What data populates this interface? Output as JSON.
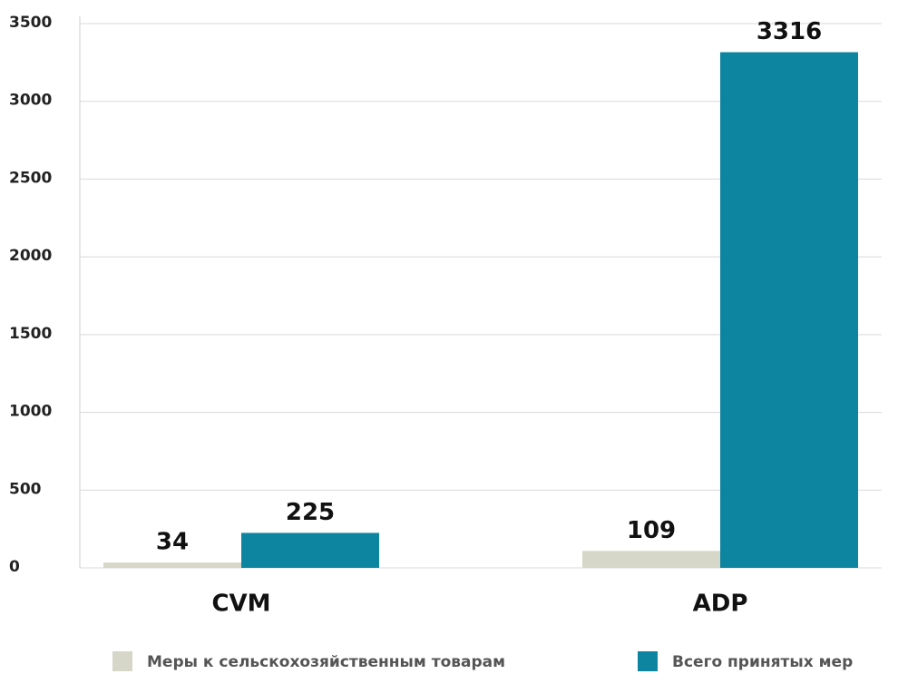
{
  "chart_data": {
    "type": "bar",
    "categories": [
      "CVM",
      "ADP"
    ],
    "series": [
      {
        "name": "Меры к сельскохозяйственным товарам",
        "color": "#d6d7c8",
        "values": [
          34,
          109
        ]
      },
      {
        "name": "Всего принятых мер",
        "color": "#0e85a0",
        "values": [
          225,
          3316
        ]
      }
    ],
    "ylim": [
      0,
      3500
    ],
    "yticks": [
      0,
      500,
      1000,
      1500,
      2000,
      2500,
      3000,
      3500
    ],
    "grid": true
  }
}
